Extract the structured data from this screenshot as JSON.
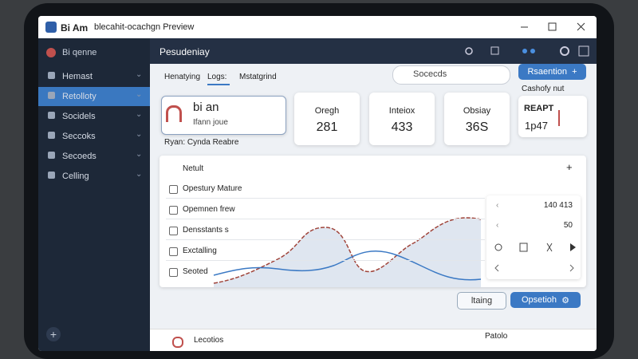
{
  "titlebar": {
    "app": "Bi Am",
    "title": "blecahit-ocachgn Preview"
  },
  "sidebar": {
    "user": "Bi qenne",
    "items": [
      "Hemast",
      "Retolloty",
      "Socidels",
      "Seccoks",
      "Secoeds",
      "Celling"
    ]
  },
  "header": {
    "title": "Pesudeniay"
  },
  "tabs": [
    "Henatying",
    "Logs:",
    "Mstatgrind"
  ],
  "search": {
    "placeholder": "Socecds"
  },
  "action_button": "Rsaention",
  "popup": {
    "caption": "Cashofy nut",
    "title": "REAPT",
    "value": "1p47"
  },
  "profile": {
    "name": "bi an",
    "subtitle": "Ifann joue",
    "note": "Ryan: Cynda Reabre"
  },
  "stats": [
    {
      "label": "Oregh",
      "value": "281"
    },
    {
      "label": "Inteiox",
      "value": "433"
    },
    {
      "label": "Obsiay",
      "value": "36S"
    }
  ],
  "panel": {
    "title": "Netult",
    "items": [
      "Opestury Mature",
      "Opemnen frew",
      "Densstants s",
      "Exctalling",
      "Seoted"
    ]
  },
  "side_panel": {
    "rows": [
      "140 413",
      "50"
    ]
  },
  "buttons": [
    "ltaing",
    "Opsetioh"
  ],
  "footer": {
    "left": "Lecotios",
    "right": "Patolo"
  }
}
